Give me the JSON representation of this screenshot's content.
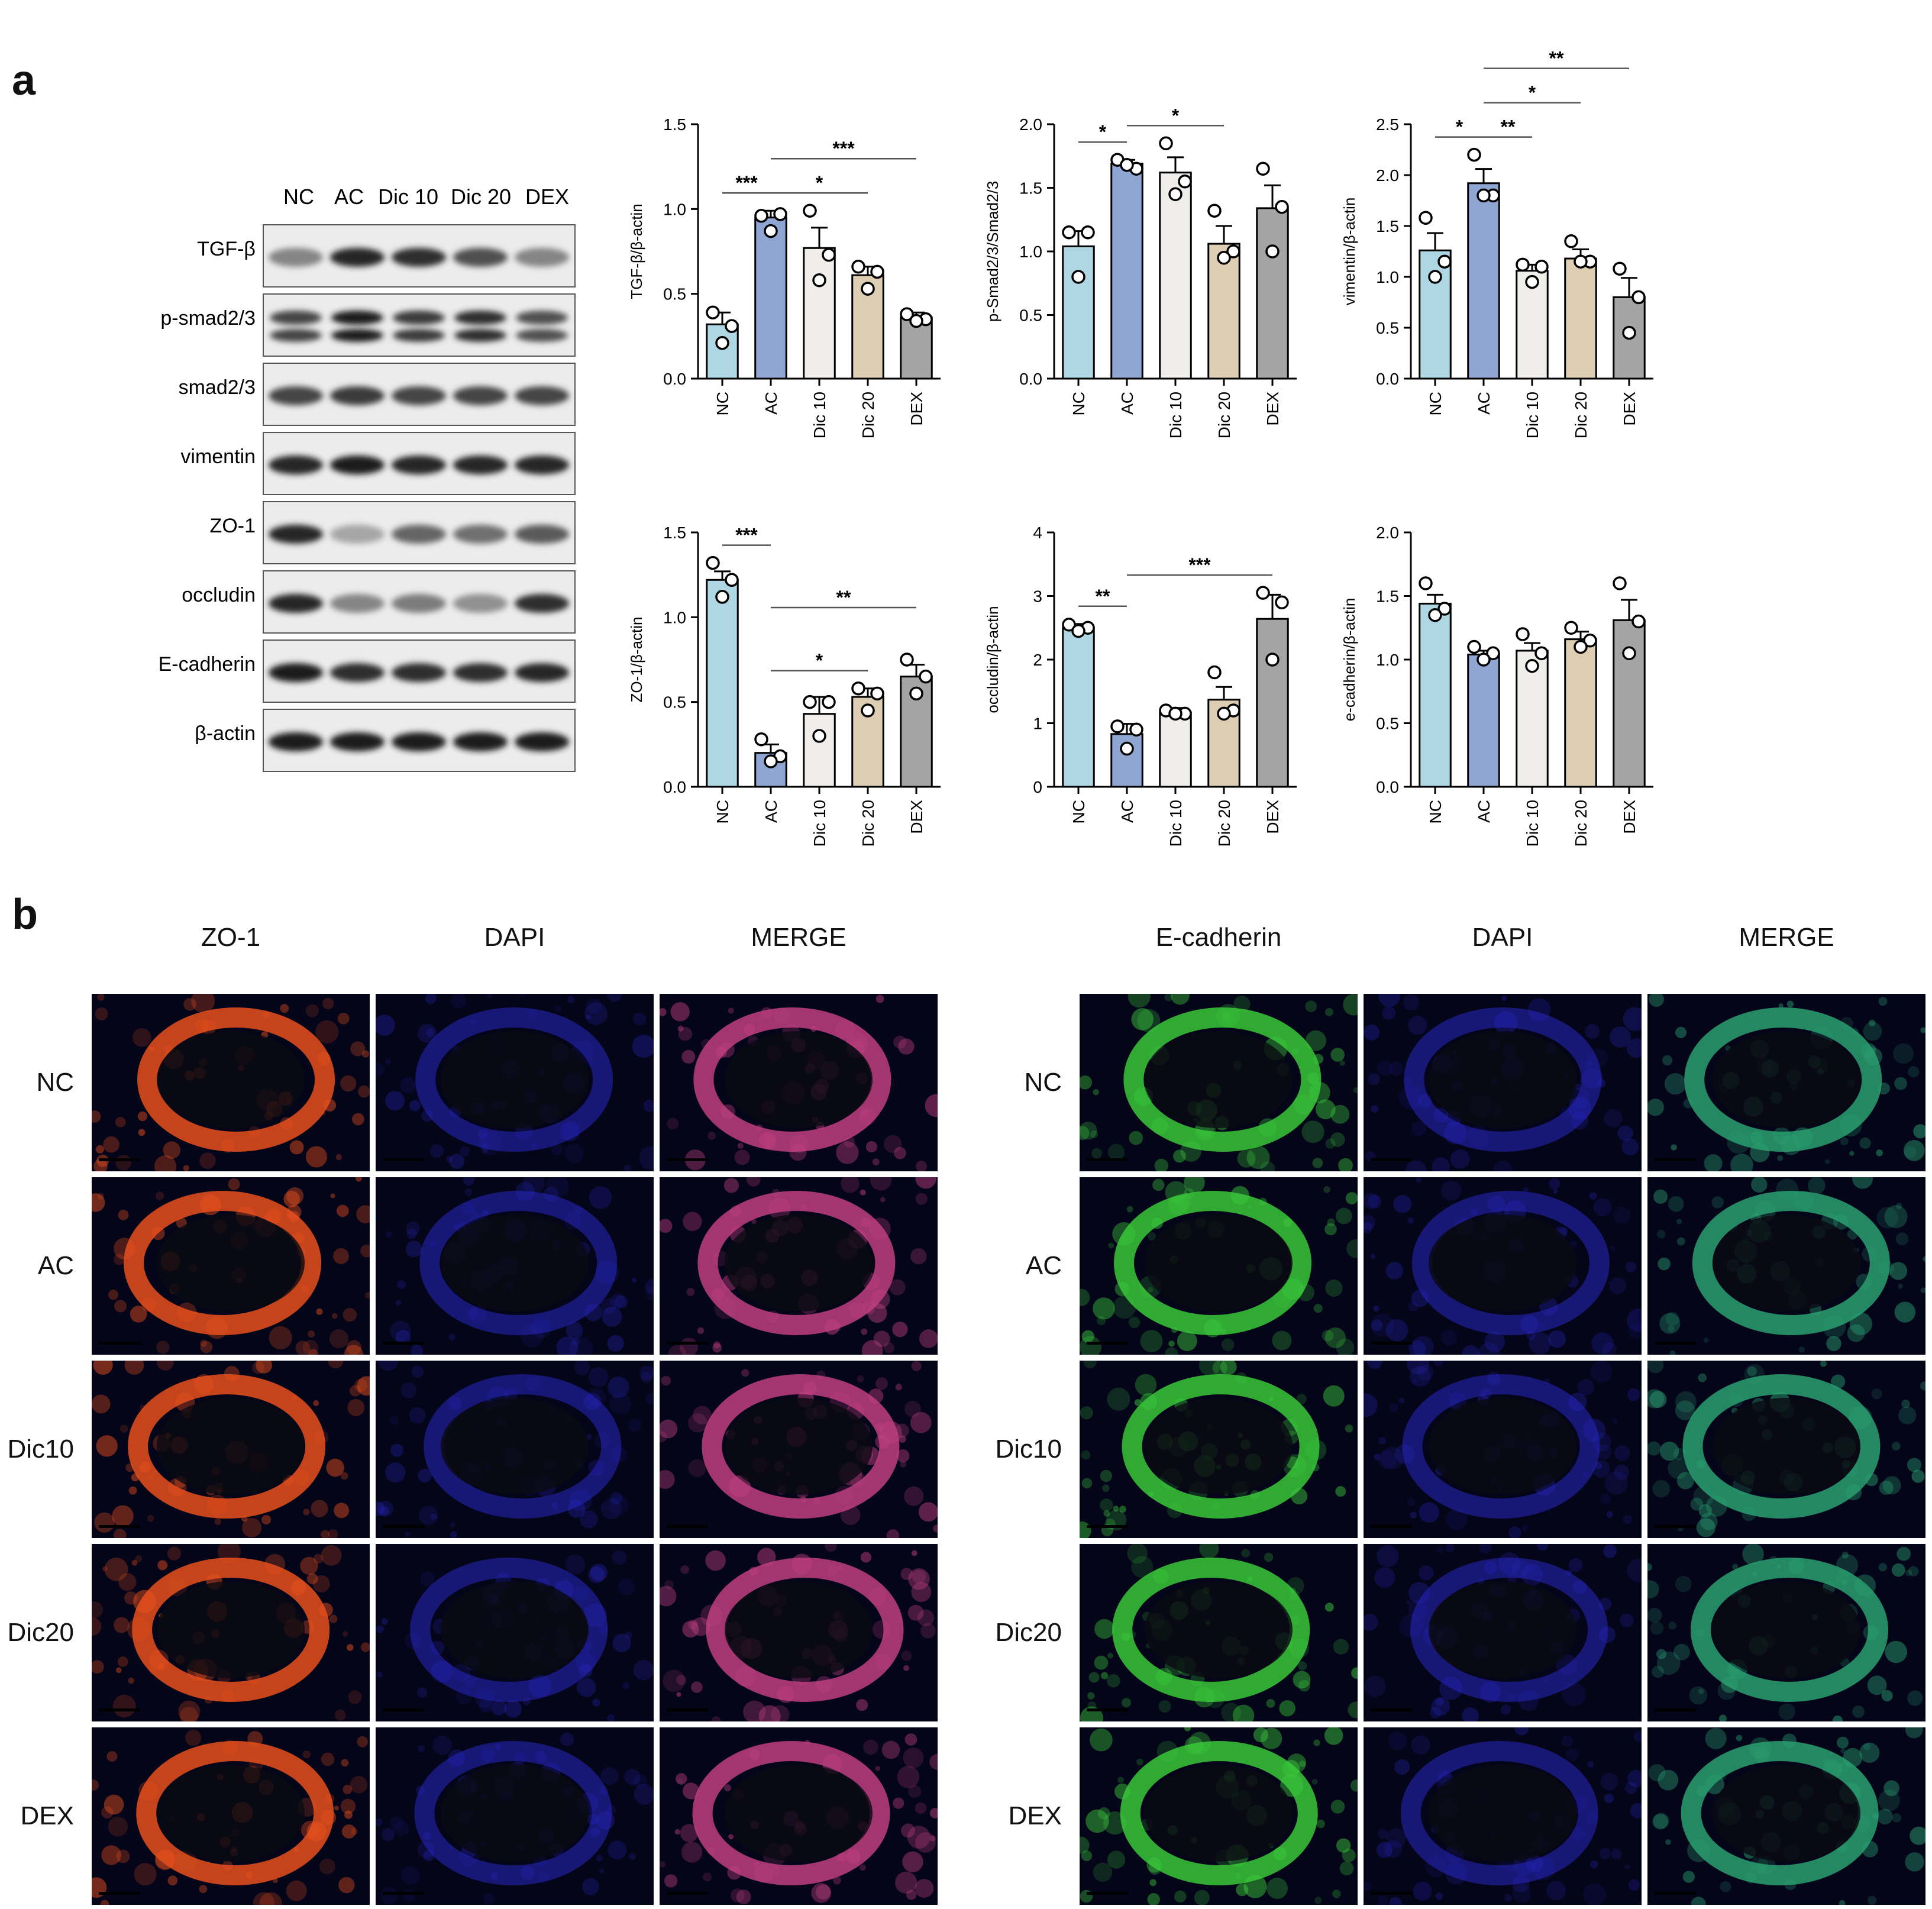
{
  "panels": {
    "a": "a",
    "b": "b"
  },
  "blot": {
    "lanes": [
      "NC",
      "AC",
      "Dic 10",
      "Dic 20",
      "DEX"
    ],
    "proteins": [
      {
        "label": "TGF-β",
        "intensity": [
          0.45,
          0.9,
          0.85,
          0.7,
          0.45
        ],
        "bands": 1
      },
      {
        "label": "p-smad2/3",
        "intensity": [
          0.75,
          0.95,
          0.8,
          0.85,
          0.7
        ],
        "bands": 2
      },
      {
        "label": "smad2/3",
        "intensity": [
          0.75,
          0.8,
          0.75,
          0.75,
          0.75
        ],
        "bands": 1
      },
      {
        "label": "vimentin",
        "intensity": [
          0.9,
          0.95,
          0.9,
          0.9,
          0.9
        ],
        "bands": 1
      },
      {
        "label": "ZO-1",
        "intensity": [
          0.9,
          0.3,
          0.6,
          0.55,
          0.65
        ],
        "bands": 1
      },
      {
        "label": "occludin",
        "intensity": [
          0.9,
          0.45,
          0.5,
          0.4,
          0.85
        ],
        "bands": 1
      },
      {
        "label": "E-cadherin",
        "intensity": [
          0.95,
          0.85,
          0.85,
          0.85,
          0.9
        ],
        "bands": 1
      },
      {
        "label": "β-actin",
        "intensity": [
          0.95,
          0.95,
          0.95,
          0.95,
          0.95
        ],
        "bands": 1
      }
    ]
  },
  "colors": {
    "NC": "#aed7e3",
    "AC": "#8fa6d2",
    "Dic 10": "#f0eeea",
    "Dic 20": "#dccdb3",
    "DEX": "#a4a4a4"
  },
  "chart_data": [
    {
      "type": "bar",
      "ylabel": "TGF-β/β-actin",
      "categories": [
        "NC",
        "AC",
        "Dic 10",
        "Dic 20",
        "DEX"
      ],
      "values": [
        0.32,
        0.95,
        0.77,
        0.61,
        0.36
      ],
      "sem": [
        0.07,
        0.04,
        0.12,
        0.05,
        0.03
      ],
      "points": [
        [
          0.39,
          0.31,
          0.21
        ],
        [
          0.96,
          0.97,
          0.87
        ],
        [
          0.99,
          0.73,
          0.58
        ],
        [
          0.66,
          0.63,
          0.53
        ],
        [
          0.38,
          0.35,
          0.34
        ]
      ],
      "ylim": [
        0,
        1.5
      ],
      "yticks": [
        "0.0",
        "0.5",
        "1.0",
        "1.5"
      ],
      "sig": [
        {
          "from": 0,
          "to": 1,
          "label": "***",
          "level": 0
        },
        {
          "from": 1,
          "to": 3,
          "label": "*",
          "level": 0
        },
        {
          "from": 1,
          "to": 4,
          "label": "***",
          "level": 1
        }
      ]
    },
    {
      "type": "bar",
      "ylabel": "p-Smad2/3/Smad2/3",
      "categories": [
        "NC",
        "AC",
        "Dic 10",
        "Dic 20",
        "DEX"
      ],
      "values": [
        1.04,
        1.69,
        1.62,
        1.06,
        1.34
      ],
      "sem": [
        0.12,
        0.03,
        0.12,
        0.14,
        0.18
      ],
      "points": [
        [
          1.15,
          1.15,
          0.8
        ],
        [
          1.72,
          1.65,
          1.68
        ],
        [
          1.85,
          1.55,
          1.45
        ],
        [
          1.32,
          1.0,
          0.95
        ],
        [
          1.65,
          1.35,
          1.0
        ]
      ],
      "ylim": [
        0,
        2.0
      ],
      "yticks": [
        "0.0",
        "0.5",
        "1.0",
        "1.5",
        "2.0"
      ],
      "sig": [
        {
          "from": 0,
          "to": 1,
          "label": "*",
          "level": 0
        },
        {
          "from": 1,
          "to": 3,
          "label": "*",
          "level": 0
        }
      ]
    },
    {
      "type": "bar",
      "ylabel": "vimentin/β-actin",
      "categories": [
        "NC",
        "AC",
        "Dic 10",
        "Dic 20",
        "DEX"
      ],
      "values": [
        1.26,
        1.92,
        1.06,
        1.18,
        0.8
      ],
      "sem": [
        0.17,
        0.14,
        0.06,
        0.09,
        0.19
      ],
      "points": [
        [
          1.58,
          1.15,
          1.0
        ],
        [
          2.2,
          1.8,
          1.8
        ],
        [
          1.12,
          1.1,
          0.95
        ],
        [
          1.35,
          1.15,
          1.15
        ],
        [
          1.08,
          0.8,
          0.45
        ]
      ],
      "ylim": [
        0,
        2.5
      ],
      "yticks": [
        "0.0",
        "0.5",
        "1.0",
        "1.5",
        "2.0",
        "2.5"
      ],
      "sig": [
        {
          "from": 0,
          "to": 1,
          "label": "*",
          "level": 0
        },
        {
          "from": 1,
          "to": 2,
          "label": "**",
          "level": 0
        },
        {
          "from": 1,
          "to": 3,
          "label": "*",
          "level": 1
        },
        {
          "from": 1,
          "to": 4,
          "label": "**",
          "level": 2
        }
      ]
    },
    {
      "type": "bar",
      "ylabel": "ZO-1/β-actin",
      "categories": [
        "NC",
        "AC",
        "Dic 10",
        "Dic 20",
        "DEX"
      ],
      "values": [
        1.22,
        0.2,
        0.43,
        0.53,
        0.65
      ],
      "sem": [
        0.05,
        0.05,
        0.1,
        0.05,
        0.07
      ],
      "points": [
        [
          1.32,
          1.22,
          1.12
        ],
        [
          0.28,
          0.18,
          0.15
        ],
        [
          0.5,
          0.5,
          0.3
        ],
        [
          0.58,
          0.55,
          0.45
        ],
        [
          0.75,
          0.65,
          0.55
        ]
      ],
      "ylim": [
        0,
        1.5
      ],
      "yticks": [
        "0.0",
        "0.5",
        "1.0",
        "1.5"
      ],
      "sig": [
        {
          "from": 0,
          "to": 1,
          "label": "***",
          "level": 0
        },
        {
          "from": 1,
          "to": 3,
          "label": "*",
          "level": 0
        },
        {
          "from": 1,
          "to": 4,
          "label": "**",
          "level": 1
        }
      ]
    },
    {
      "type": "bar",
      "ylabel": "occludin/β-actin",
      "categories": [
        "NC",
        "AC",
        "Dic 10",
        "Dic 20",
        "DEX"
      ],
      "values": [
        2.5,
        0.83,
        1.17,
        1.37,
        2.64
      ],
      "sem": [
        0.06,
        0.16,
        0.07,
        0.2,
        0.38
      ],
      "points": [
        [
          2.55,
          2.5,
          2.45
        ],
        [
          0.95,
          0.9,
          0.6
        ],
        [
          1.2,
          1.15,
          1.15
        ],
        [
          1.8,
          1.2,
          1.15
        ],
        [
          3.05,
          2.9,
          2.0
        ]
      ],
      "ylim": [
        0,
        4
      ],
      "yticks": [
        "0",
        "1",
        "2",
        "3",
        "4"
      ],
      "sig": [
        {
          "from": 0,
          "to": 1,
          "label": "**",
          "level": 0
        },
        {
          "from": 1,
          "to": 4,
          "label": "***",
          "level": 0
        }
      ]
    },
    {
      "type": "bar",
      "ylabel": "e-cadherin/β-actin",
      "categories": [
        "NC",
        "AC",
        "Dic 10",
        "Dic 20",
        "DEX"
      ],
      "values": [
        1.44,
        1.04,
        1.07,
        1.16,
        1.31
      ],
      "sem": [
        0.07,
        0.03,
        0.06,
        0.06,
        0.16
      ],
      "points": [
        [
          1.6,
          1.4,
          1.35
        ],
        [
          1.1,
          1.05,
          1.0
        ],
        [
          1.2,
          1.05,
          0.95
        ],
        [
          1.25,
          1.15,
          1.1
        ],
        [
          1.6,
          1.3,
          1.05
        ]
      ],
      "ylim": [
        0,
        2.0
      ],
      "yticks": [
        "0.0",
        "0.5",
        "1.0",
        "1.5",
        "2.0"
      ],
      "sig": []
    }
  ],
  "if_panel": {
    "left_headers": [
      "ZO-1",
      "DAPI",
      "MERGE"
    ],
    "right_headers": [
      "E-cadherin",
      "DAPI",
      "MERGE"
    ],
    "left_rows": [
      "NC",
      "AC",
      "Dic10",
      "Dic20",
      "DEX"
    ],
    "right_rows": [
      "NC",
      "AC",
      "Dic10",
      "Dic20",
      "DEX"
    ],
    "stain_colors": {
      "zo1": "#e8501c",
      "dapi": "#2a2ad0",
      "merge_left": "#c04080",
      "ecad": "#3ac83a",
      "merge_right": "#2aa070"
    }
  }
}
